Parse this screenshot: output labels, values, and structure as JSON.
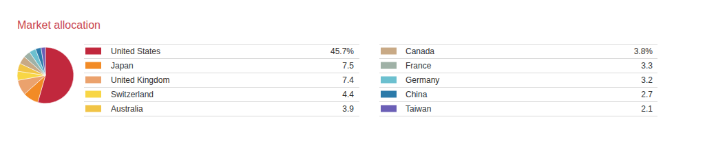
{
  "chart_data": {
    "type": "pie",
    "title": "Market allocation",
    "categories": [
      "United States",
      "Japan",
      "United Kingdom",
      "Switzerland",
      "Australia",
      "Canada",
      "France",
      "Germany",
      "China",
      "Taiwan"
    ],
    "values": [
      45.7,
      7.5,
      7.4,
      4.4,
      3.9,
      3.8,
      3.3,
      3.2,
      2.7,
      2.1
    ],
    "value_labels": [
      "45.7%",
      "7.5",
      "7.4",
      "4.4",
      "3.9",
      "3.8%",
      "3.3",
      "3.2",
      "2.7",
      "2.1"
    ],
    "colors": [
      "#c1283d",
      "#f28b26",
      "#eba26d",
      "#f8d645",
      "#f1c446",
      "#c8a985",
      "#9fb1a6",
      "#6cc0cf",
      "#2b7aa9",
      "#6b5fb6"
    ]
  }
}
